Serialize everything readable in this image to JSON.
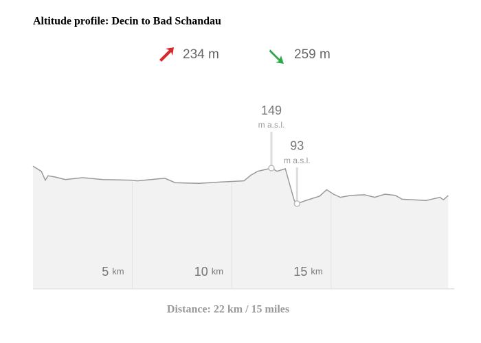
{
  "chart_data": {
    "type": "area",
    "title": "Altitude profile: Decin to Bad Schandau",
    "stats": {
      "ascent": {
        "value": 234,
        "unit": "m",
        "color": "#d62a2a"
      },
      "descent": {
        "value": 259,
        "unit": "m",
        "color": "#2ea84a"
      }
    },
    "x": [
      0,
      0.42,
      0.62,
      0.76,
      1.11,
      1.63,
      2.49,
      3.53,
      4.91,
      5.26,
      6.3,
      6.64,
      7.16,
      8.37,
      9.41,
      10.62,
      10.97,
      11.31,
      12.0,
      12.28,
      12.7,
      13.15,
      13.29,
      13.74,
      14.43,
      14.78,
      15.12,
      15.47,
      15.99,
      16.68,
      17.2,
      17.72,
      18.24,
      18.58,
      19.79,
      20.48,
      20.66,
      20.9
    ],
    "values": [
      152,
      144,
      130,
      137,
      135,
      131,
      134,
      131,
      130,
      129,
      132,
      133,
      126,
      125,
      127,
      129,
      138,
      144,
      149,
      144,
      148,
      98,
      93,
      98,
      105,
      115,
      108,
      103,
      106,
      107,
      103,
      108,
      106,
      100,
      98,
      103,
      99,
      106
    ],
    "color": "#999999",
    "fill": "#f2f2f2",
    "xlim": [
      0,
      21.2
    ],
    "ylim": [
      -40,
      175
    ],
    "xticks": [
      5,
      10,
      15
    ],
    "xtick_unit": "km",
    "grid": true,
    "annotations": [
      {
        "x": 12.0,
        "value": 149,
        "unit": "m a.s.l."
      },
      {
        "x": 13.29,
        "value": 93,
        "unit": "m a.s.l."
      }
    ],
    "xlabel": "Distance: 22 km / 15 miles"
  }
}
